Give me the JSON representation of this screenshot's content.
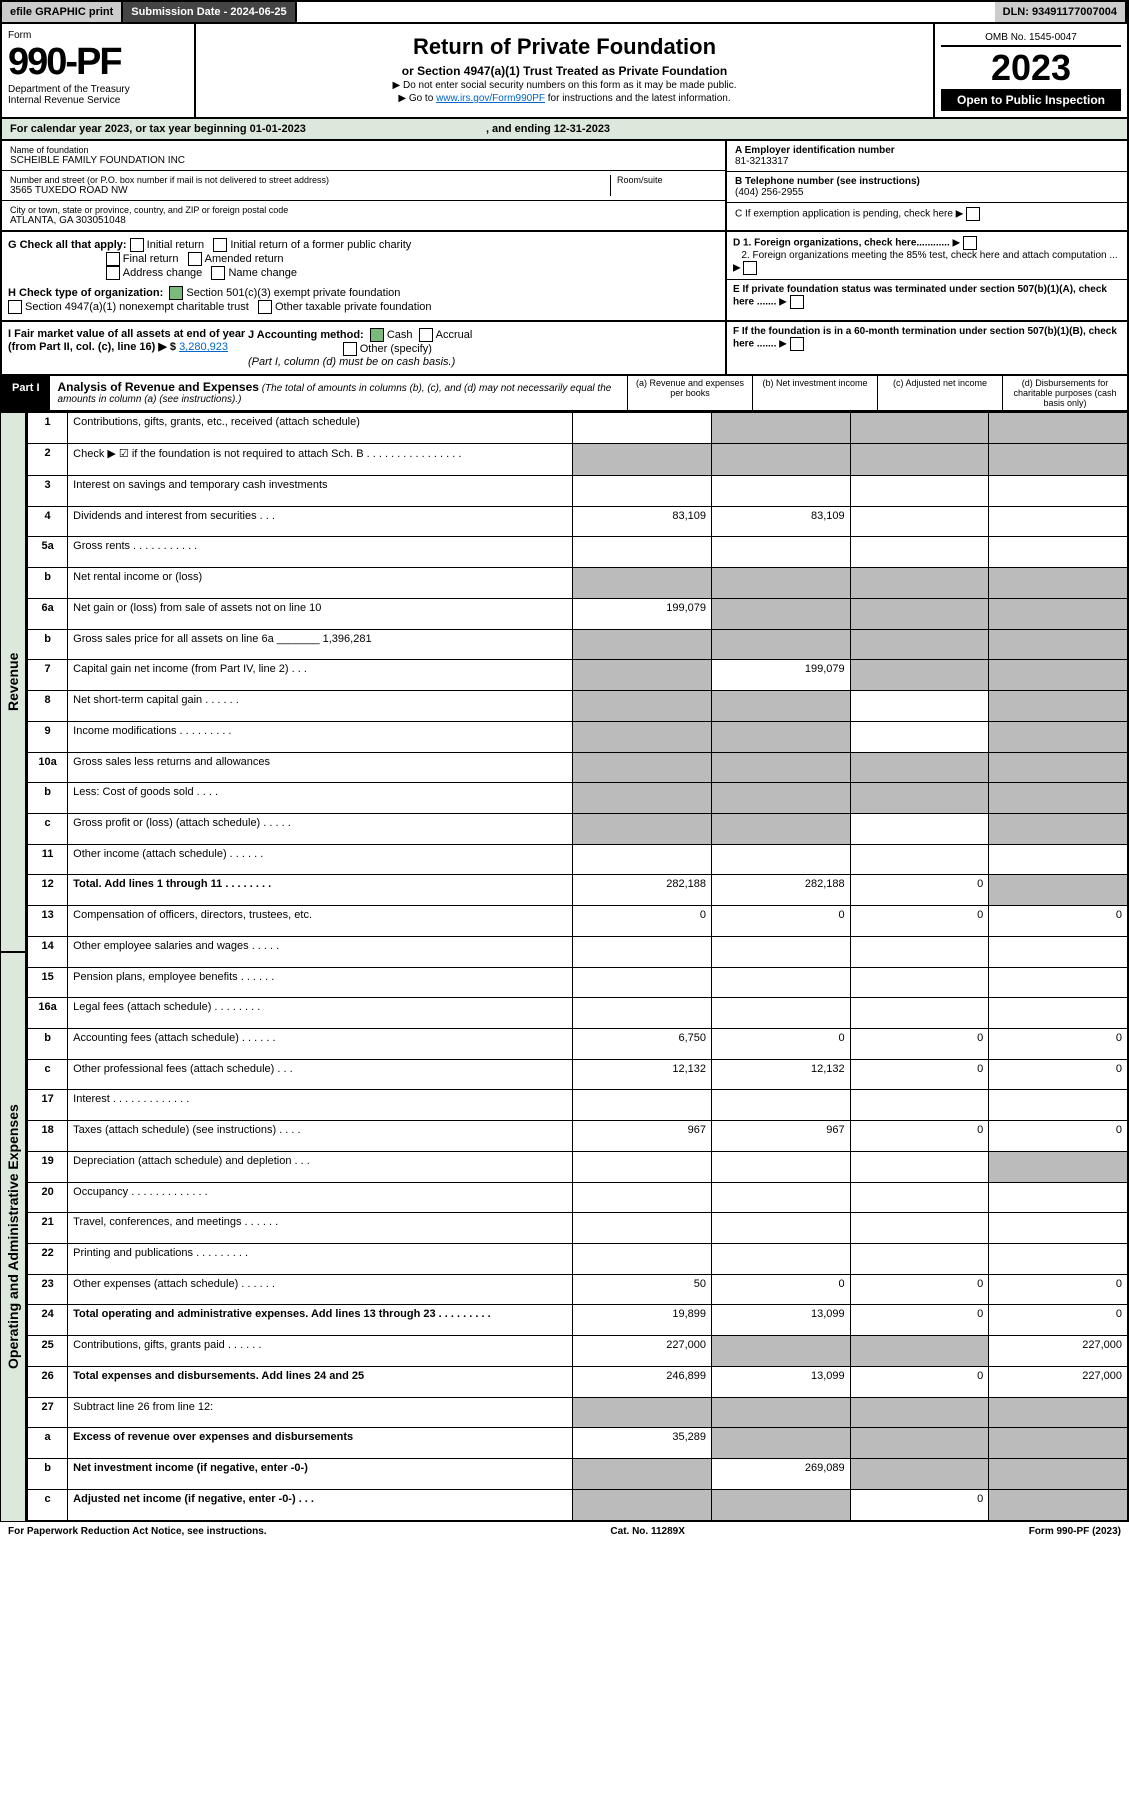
{
  "topbar": {
    "efile": "efile GRAPHIC print",
    "subdate_lbl": "Submission Date - ",
    "subdate": "2024-06-25",
    "dln_lbl": "DLN: ",
    "dln": "93491177007004"
  },
  "header": {
    "form": "Form",
    "num": "990-PF",
    "dept": "Department of the Treasury",
    "irs": "Internal Revenue Service",
    "title": "Return of Private Foundation",
    "subtitle": "or Section 4947(a)(1) Trust Treated as Private Foundation",
    "note1": "▶ Do not enter social security numbers on this form as it may be made public.",
    "note2_pre": "▶ Go to ",
    "note2_link": "www.irs.gov/Form990PF",
    "note2_post": " for instructions and the latest information.",
    "omb": "OMB No. 1545-0047",
    "year": "2023",
    "open": "Open to Public Inspection"
  },
  "cal": {
    "pre": "For calendar year 2023, or tax year beginning ",
    "begin": "01-01-2023",
    "mid": ", and ending ",
    "end": "12-31-2023"
  },
  "info": {
    "name_lbl": "Name of foundation",
    "name": "SCHEIBLE FAMILY FOUNDATION INC",
    "addr_lbl": "Number and street (or P.O. box number if mail is not delivered to street address)",
    "addr": "3565 TUXEDO ROAD NW",
    "room_lbl": "Room/suite",
    "city_lbl": "City or town, state or province, country, and ZIP or foreign postal code",
    "city": "ATLANTA, GA  303051048",
    "A_lbl": "A Employer identification number",
    "A": "81-3213317",
    "B_lbl": "B Telephone number (see instructions)",
    "B": "(404) 256-2955",
    "C": "C If exemption application is pending, check here",
    "D1": "D 1. Foreign organizations, check here............",
    "D2": "2. Foreign organizations meeting the 85% test, check here and attach computation ...",
    "E": "E  If private foundation status was terminated under section 507(b)(1)(A), check here .......",
    "F": "F  If the foundation is in a 60-month termination under section 507(b)(1)(B), check here ......."
  },
  "G": {
    "lbl": "G Check all that apply:",
    "opts": [
      "Initial return",
      "Final return",
      "Address change",
      "Initial return of a former public charity",
      "Amended return",
      "Name change"
    ]
  },
  "H": {
    "lbl": "H Check type of organization:",
    "o1": "Section 501(c)(3) exempt private foundation",
    "o2": "Section 4947(a)(1) nonexempt charitable trust",
    "o3": "Other taxable private foundation"
  },
  "I": {
    "lbl": "I Fair market value of all assets at end of year (from Part II, col. (c), line 16) ▶ $",
    "val": "3,280,923"
  },
  "J": {
    "lbl": "J Accounting method:",
    "o1": "Cash",
    "o2": "Accrual",
    "o3": "Other (specify)",
    "note": "(Part I, column (d) must be on cash basis.)"
  },
  "part1": {
    "lbl": "Part I",
    "title": "Analysis of Revenue and Expenses",
    "note": "(The total of amounts in columns (b), (c), and (d) may not necessarily equal the amounts in column (a) (see instructions).)",
    "colA": "(a) Revenue and expenses per books",
    "colB": "(b) Net investment income",
    "colC": "(c) Adjusted net income",
    "colD": "(d) Disbursements for charitable purposes (cash basis only)"
  },
  "sections": {
    "rev": "Revenue",
    "oae": "Operating and Administrative Expenses"
  },
  "rows": [
    {
      "n": "1",
      "d": "Contributions, gifts, grants, etc., received (attach schedule)",
      "a": "",
      "b": "g",
      "c": "g",
      "dd": "g"
    },
    {
      "n": "2",
      "d": "Check ▶ ☑ if the foundation is not required to attach Sch. B   .  .  .  .  .  .  .  .  .  .  .  .  .  .  .  .",
      "a": "g",
      "b": "g",
      "c": "g",
      "dd": "g"
    },
    {
      "n": "3",
      "d": "Interest on savings and temporary cash investments"
    },
    {
      "n": "4",
      "d": "Dividends and interest from securities   .   .   .",
      "a": "83,109",
      "b": "83,109"
    },
    {
      "n": "5a",
      "d": "Gross rents   .   .   .   .   .   .   .   .   .   .   ."
    },
    {
      "n": "b",
      "d": "Net rental income or (loss)",
      "a": "g",
      "b": "g",
      "c": "g",
      "dd": "g"
    },
    {
      "n": "6a",
      "d": "Net gain or (loss) from sale of assets not on line 10",
      "a": "199,079",
      "b": "g",
      "c": "g",
      "dd": "g"
    },
    {
      "n": "b",
      "d": "Gross sales price for all assets on line 6a _______ 1,396,281",
      "a": "g",
      "b": "g",
      "c": "g",
      "dd": "g"
    },
    {
      "n": "7",
      "d": "Capital gain net income (from Part IV, line 2)   .   .   .",
      "a": "g",
      "b": "199,079",
      "c": "g",
      "dd": "g"
    },
    {
      "n": "8",
      "d": "Net short-term capital gain   .   .   .   .   .   .",
      "a": "g",
      "b": "g",
      "dd": "g"
    },
    {
      "n": "9",
      "d": "Income modifications .   .   .   .   .   .   .   .   .",
      "a": "g",
      "b": "g",
      "dd": "g"
    },
    {
      "n": "10a",
      "d": "Gross sales less returns and allowances",
      "a": "g",
      "b": "g",
      "c": "g",
      "dd": "g"
    },
    {
      "n": "b",
      "d": "Less: Cost of goods sold   .   .   .   .",
      "a": "g",
      "b": "g",
      "c": "g",
      "dd": "g"
    },
    {
      "n": "c",
      "d": "Gross profit or (loss) (attach schedule)   .   .   .   .   .",
      "a": "g",
      "b": "g",
      "dd": "g"
    },
    {
      "n": "11",
      "d": "Other income (attach schedule)   .   .   .   .   .   ."
    },
    {
      "n": "12",
      "d": "Total. Add lines 1 through 11   .   .   .   .   .   .   .   .",
      "bold": true,
      "a": "282,188",
      "b": "282,188",
      "c": "0",
      "dd": "g"
    },
    {
      "n": "13",
      "d": "Compensation of officers, directors, trustees, etc.",
      "a": "0",
      "b": "0",
      "c": "0",
      "dd": "0"
    },
    {
      "n": "14",
      "d": "Other employee salaries and wages   .   .   .   .   ."
    },
    {
      "n": "15",
      "d": "Pension plans, employee benefits   .   .   .   .   .   ."
    },
    {
      "n": "16a",
      "d": "Legal fees (attach schedule) .   .   .   .   .   .   .   ."
    },
    {
      "n": "b",
      "d": "Accounting fees (attach schedule) .   .   .   .   .   .",
      "a": "6,750",
      "b": "0",
      "c": "0",
      "dd": "0"
    },
    {
      "n": "c",
      "d": "Other professional fees (attach schedule)   .   .   .",
      "a": "12,132",
      "b": "12,132",
      "c": "0",
      "dd": "0"
    },
    {
      "n": "17",
      "d": "Interest .   .   .   .   .   .   .   .   .   .   .   .   ."
    },
    {
      "n": "18",
      "d": "Taxes (attach schedule) (see instructions)   .   .   .   .",
      "a": "967",
      "b": "967",
      "c": "0",
      "dd": "0"
    },
    {
      "n": "19",
      "d": "Depreciation (attach schedule) and depletion   .   .   .",
      "dd": "g"
    },
    {
      "n": "20",
      "d": "Occupancy .   .   .   .   .   .   .   .   .   .   .   .   ."
    },
    {
      "n": "21",
      "d": "Travel, conferences, and meetings .   .   .   .   .   ."
    },
    {
      "n": "22",
      "d": "Printing and publications .   .   .   .   .   .   .   .   ."
    },
    {
      "n": "23",
      "d": "Other expenses (attach schedule)   .   .   .   .   .   .",
      "a": "50",
      "b": "0",
      "c": "0",
      "dd": "0"
    },
    {
      "n": "24",
      "d": "Total operating and administrative expenses. Add lines 13 through 23   .   .   .   .   .   .   .   .   .",
      "bold": true,
      "a": "19,899",
      "b": "13,099",
      "c": "0",
      "dd": "0"
    },
    {
      "n": "25",
      "d": "Contributions, gifts, grants paid   .   .   .   .   .   .",
      "a": "227,000",
      "b": "g",
      "c": "g",
      "dd": "227,000"
    },
    {
      "n": "26",
      "d": "Total expenses and disbursements. Add lines 24 and 25",
      "bold": true,
      "a": "246,899",
      "b": "13,099",
      "c": "0",
      "dd": "227,000"
    },
    {
      "n": "27",
      "d": "Subtract line 26 from line 12:",
      "a": "g",
      "b": "g",
      "c": "g",
      "dd": "g"
    },
    {
      "n": "a",
      "d": "Excess of revenue over expenses and disbursements",
      "bold": true,
      "a": "35,289",
      "b": "g",
      "c": "g",
      "dd": "g"
    },
    {
      "n": "b",
      "d": "Net investment income (if negative, enter -0-)",
      "bold": true,
      "a": "g",
      "b": "269,089",
      "c": "g",
      "dd": "g"
    },
    {
      "n": "c",
      "d": "Adjusted net income (if negative, enter -0-)   .   .   .",
      "bold": true,
      "a": "g",
      "b": "g",
      "c": "0",
      "dd": "g"
    }
  ],
  "footer": {
    "left": "For Paperwork Reduction Act Notice, see instructions.",
    "mid": "Cat. No. 11289X",
    "right": "Form 990-PF (2023)"
  }
}
